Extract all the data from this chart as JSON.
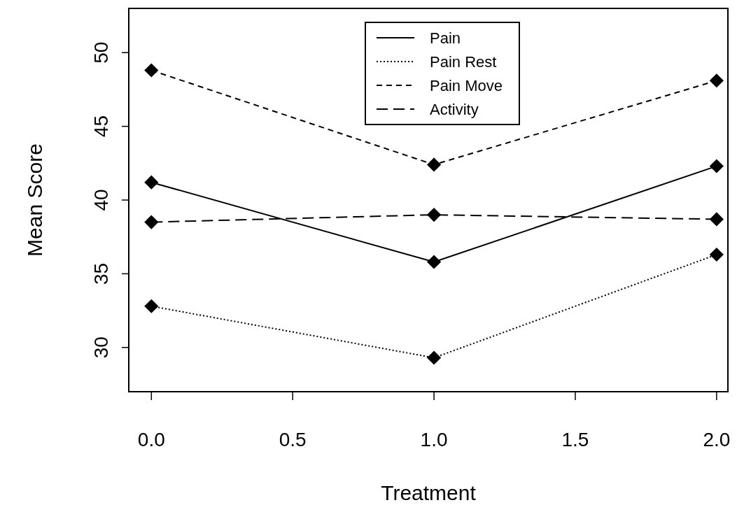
{
  "chart_data": {
    "type": "line",
    "xlabel": "Treatment",
    "ylabel": "Mean Score",
    "x": [
      0,
      1,
      2
    ],
    "series": [
      {
        "name": "Pain",
        "color": "#000000",
        "line_style": "solid",
        "values": [
          41.2,
          35.8,
          42.3
        ]
      },
      {
        "name": "Pain Rest",
        "color": "#000000",
        "line_style": "dotted",
        "values": [
          32.8,
          29.3,
          36.3
        ]
      },
      {
        "name": "Pain Move",
        "color": "#000000",
        "line_style": "dashed",
        "values": [
          48.8,
          42.4,
          48.1
        ]
      },
      {
        "name": "Activity",
        "color": "#000000",
        "line_style": "longdash",
        "values": [
          38.5,
          39.0,
          38.7
        ]
      }
    ],
    "xlim": [
      -0.08,
      2.04
    ],
    "xticks": [
      {
        "value": 0,
        "label": "0.0"
      },
      {
        "value": 0.5,
        "label": "0.5"
      },
      {
        "value": 1,
        "label": "1.0"
      },
      {
        "value": 1.5,
        "label": "1.5"
      },
      {
        "value": 2,
        "label": "2.0"
      }
    ],
    "ylim": [
      27,
      53
    ],
    "yticks": [
      30,
      35,
      40,
      45,
      50
    ],
    "marker": "diamond",
    "legend": "top",
    "grid": false
  }
}
